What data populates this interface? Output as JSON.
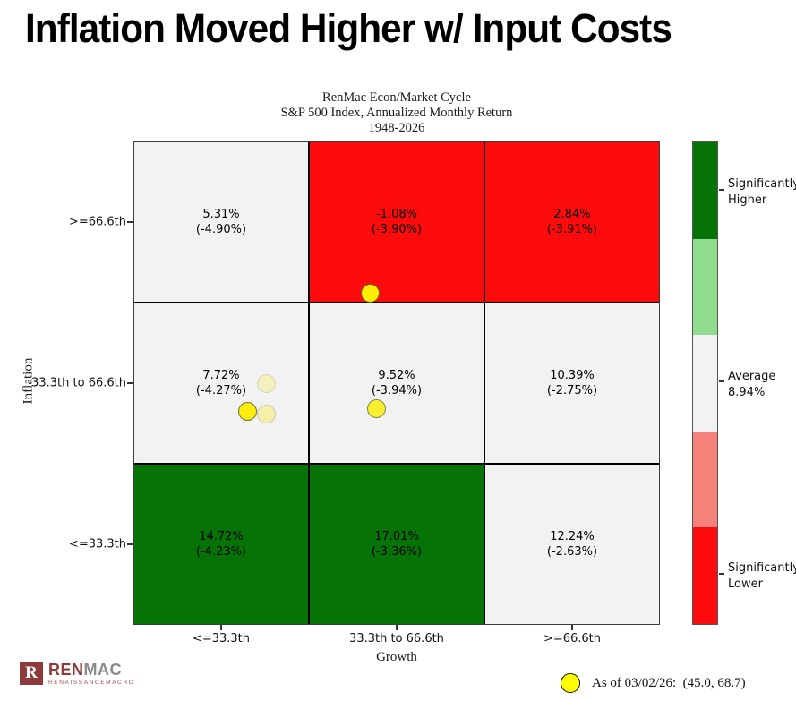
{
  "page": {
    "title": "Inflation Moved Higher w/ Input Costs"
  },
  "chart_data": {
    "type": "heatmap",
    "title_lines": [
      "RenMac Econ/Market Cycle",
      "S&P 500 Index, Annualized Monthly Return",
      "1948-2026"
    ],
    "x_axis": {
      "label": "Growth",
      "ticks": [
        "<=33.3th",
        "33.3th to 66.6th",
        ">=66.6th"
      ],
      "range_percentile": [
        0,
        100
      ]
    },
    "y_axis": {
      "label": "Inflation",
      "ticks_top_to_bottom": [
        ">=66.6th",
        "33.3th to 66.6th",
        "<=33.3th"
      ],
      "range_percentile": [
        0,
        100
      ]
    },
    "rows": [
      {
        "inflation_band": ">=66.6th",
        "cells": [
          {
            "return": "5.31%",
            "drawdown": "(-4.90%)",
            "fill": "#f2f2f2"
          },
          {
            "return": "-1.08%",
            "drawdown": "(-3.90%)",
            "fill": "#fb0b0b"
          },
          {
            "return": "2.84%",
            "drawdown": "(-3.91%)",
            "fill": "#fb0b0b"
          }
        ]
      },
      {
        "inflation_band": "33.3th to 66.6th",
        "cells": [
          {
            "return": "7.72%",
            "drawdown": "(-4.27%)",
            "fill": "#f2f2f2"
          },
          {
            "return": "9.52%",
            "drawdown": "(-3.94%)",
            "fill": "#f2f2f2"
          },
          {
            "return": "10.39%",
            "drawdown": "(-2.75%)",
            "fill": "#f2f2f2"
          }
        ]
      },
      {
        "inflation_band": "<=33.3th",
        "cells": [
          {
            "return": "14.72%",
            "drawdown": "(-4.23%)",
            "fill": "#067306"
          },
          {
            "return": "17.01%",
            "drawdown": "(-3.36%)",
            "fill": "#067306"
          },
          {
            "return": "12.24%",
            "drawdown": "(-2.63%)",
            "fill": "#f2f2f2"
          }
        ]
      }
    ],
    "colorbar": {
      "segments_top_to_bottom": [
        {
          "name": "significantly-higher",
          "color": "#067306"
        },
        {
          "name": "higher",
          "color": "#8fdc8f"
        },
        {
          "name": "average",
          "color": "#f2f2f2"
        },
        {
          "name": "lower",
          "color": "#f4827b"
        },
        {
          "name": "significantly-lower",
          "color": "#fb0b0b"
        }
      ],
      "labels": [
        {
          "line1": "Significantly",
          "line2": "Higher"
        },
        {
          "line1": "Average",
          "line2": "8.94%"
        },
        {
          "line1": "Significantly",
          "line2": "Lower"
        }
      ]
    },
    "points": [
      {
        "growth": 25.3,
        "inflation": 50.0,
        "opacity": 0.22
      },
      {
        "growth": 25.2,
        "inflation": 43.7,
        "opacity": 0.3
      },
      {
        "growth": 21.6,
        "inflation": 44.1,
        "opacity": 0.95
      },
      {
        "growth": 46.1,
        "inflation": 44.8,
        "opacity": 0.8
      },
      {
        "growth": 45.0,
        "inflation": 68.7,
        "opacity": 1.0
      }
    ],
    "point_color": "#fdee00",
    "legend": {
      "marker_color": "#ffff00",
      "text": "As of 03/02/26:  (45.0, 68.7)"
    }
  },
  "logo": {
    "icon_letter": "R",
    "name_primary": "REN",
    "name_secondary": "MAC",
    "subtext": "RENAISSANCEMACRO",
    "color_primary": "#8e3a3a",
    "color_secondary": "#8a8a8a",
    "subtext_color": "#a24848"
  }
}
